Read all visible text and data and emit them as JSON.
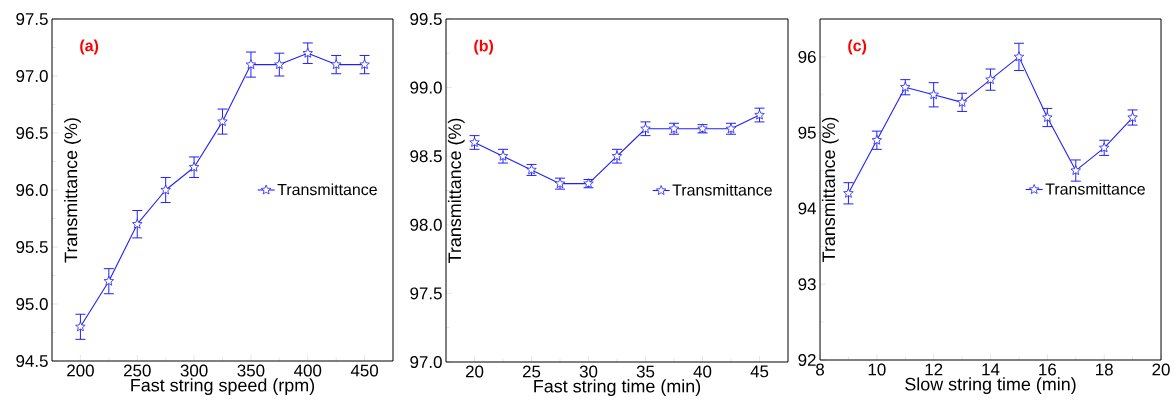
{
  "chart_data": [
    {
      "type": "line",
      "xlabel": "Fast string speed (rpm)",
      "ylabel": "Transmittance (%)",
      "annotations": [
        "(a)"
      ],
      "x": [
        200,
        225,
        250,
        275,
        300,
        325,
        350,
        375,
        400,
        425,
        450
      ],
      "series": [
        {
          "name": "Transmittance",
          "color": "#2020ff",
          "values": [
            94.8,
            95.2,
            95.7,
            96.0,
            96.2,
            96.6,
            97.1,
            97.1,
            97.2,
            97.1,
            97.1
          ],
          "errors": [
            0.11,
            0.11,
            0.12,
            0.11,
            0.09,
            0.11,
            0.11,
            0.1,
            0.09,
            0.08,
            0.08
          ]
        }
      ],
      "xlim": [
        175,
        475
      ],
      "ylim": [
        94.5,
        97.5
      ],
      "xticks": [
        200,
        250,
        300,
        350,
        400,
        450
      ],
      "yticks": [
        {
          "value": 94.5,
          "label": "94.5"
        },
        {
          "value": 95,
          "label": "95.0"
        },
        {
          "value": 95.5,
          "label": "95.5"
        },
        {
          "value": 96,
          "label": "96.0"
        },
        {
          "value": 96.5,
          "label": "96.5"
        },
        {
          "value": 97,
          "label": "97.0"
        },
        {
          "value": 97.5,
          "label": "97.5"
        }
      ],
      "marker": "star",
      "legend": "right",
      "grid": false
    },
    {
      "type": "line",
      "xlabel": "Fast string time (min)",
      "ylabel": "Transmittance (%)",
      "annotations": [
        "(b)"
      ],
      "x": [
        20,
        22.5,
        25,
        27.5,
        30,
        32.5,
        35,
        37.5,
        40,
        42.5,
        45
      ],
      "series": [
        {
          "name": "Transmittance",
          "color": "#2020ff",
          "values": [
            98.6,
            98.5,
            98.4,
            98.3,
            98.3,
            98.5,
            98.7,
            98.7,
            98.7,
            98.7,
            98.8
          ],
          "errors": [
            0.05,
            0.05,
            0.04,
            0.04,
            0.03,
            0.05,
            0.05,
            0.04,
            0.03,
            0.04,
            0.05
          ]
        }
      ],
      "xlim": [
        17.5,
        47.5
      ],
      "ylim": [
        97,
        99.5
      ],
      "xticks": [
        20,
        25,
        30,
        35,
        40,
        45
      ],
      "yticks": [
        {
          "value": 97,
          "label": "97.0"
        },
        {
          "value": 97.5,
          "label": "97.5"
        },
        {
          "value": 98,
          "label": "98.0"
        },
        {
          "value": 98.5,
          "label": "98.5"
        },
        {
          "value": 99,
          "label": "99.0"
        },
        {
          "value": 99.5,
          "label": "99.5"
        }
      ],
      "marker": "star",
      "legend": "right",
      "grid": false
    },
    {
      "type": "line",
      "xlabel": "Slow  string time (min)",
      "ylabel": "Transmittance (%)",
      "annotations": [
        "(c)"
      ],
      "x": [
        9,
        10,
        11,
        12,
        13,
        14,
        15,
        16,
        17,
        18,
        19
      ],
      "series": [
        {
          "name": "Transmittance",
          "color": "#2020ff",
          "values": [
            94.2,
            94.9,
            95.6,
            95.5,
            95.4,
            95.7,
            96.0,
            95.2,
            94.5,
            94.8,
            95.2
          ],
          "errors": [
            0.14,
            0.12,
            0.1,
            0.16,
            0.12,
            0.14,
            0.18,
            0.12,
            0.14,
            0.1,
            0.1
          ]
        }
      ],
      "xlim": [
        8,
        20
      ],
      "ylim": [
        92,
        96.5
      ],
      "xticks": [
        8,
        10,
        12,
        14,
        16,
        18,
        20
      ],
      "yticks": [
        92,
        93,
        94,
        95,
        96
      ],
      "marker": "star",
      "legend": "right",
      "grid": false
    }
  ]
}
